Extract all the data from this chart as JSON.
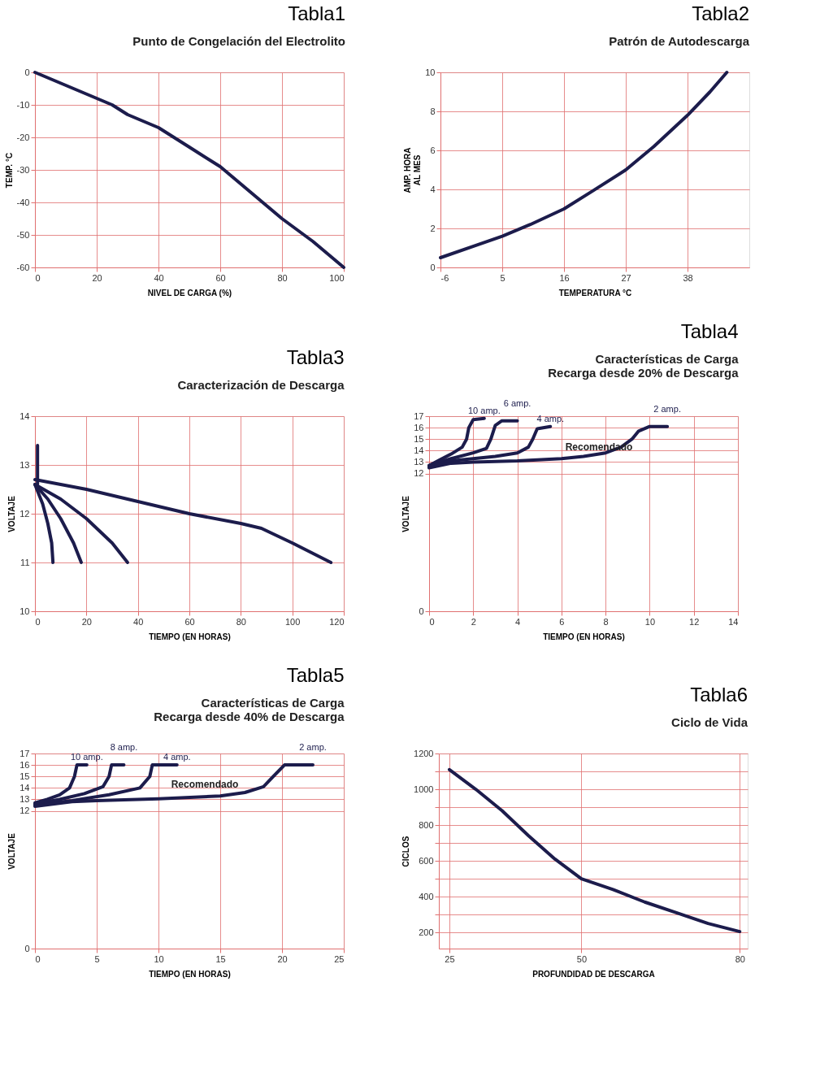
{
  "chart_data": [
    {
      "type": "line",
      "title": "Tabla1",
      "subtitle": "Punto de Congelación del Electrolito",
      "xlabel": "NIVEL DE CARGA (%)",
      "ylabel": "TEMP. °C",
      "xlim": [
        0,
        100
      ],
      "ylim": [
        -60,
        0
      ],
      "xticks": [
        0,
        20,
        40,
        60,
        80,
        100
      ],
      "yticks": [
        -60,
        -50,
        -40,
        -30,
        -20,
        -10,
        0
      ],
      "grid": true,
      "marker": "none",
      "line_style": "solid",
      "series": [
        {
          "color": "#1c1c4c",
          "x": [
            0,
            10,
            20,
            25,
            30,
            40,
            50,
            60,
            70,
            80,
            90,
            100
          ],
          "values": [
            0,
            -4,
            -8,
            -10,
            -13,
            -17,
            -23,
            -29,
            -37,
            -45,
            -52,
            -60
          ]
        }
      ]
    },
    {
      "type": "line",
      "title": "Tabla2",
      "subtitle": "Patrón de Autodescarga",
      "xlabel": "TEMPERATURA °C",
      "ylabel": "AMP. HORA\nAL MES",
      "xlim": [
        -6,
        49
      ],
      "ylim": [
        0,
        10
      ],
      "xticks": [
        -6,
        5,
        16,
        27,
        38
      ],
      "yticks": [
        0,
        2,
        4,
        6,
        8,
        10
      ],
      "grid": true,
      "marker": "none",
      "line_style": "solid",
      "series": [
        {
          "color": "#1c1c4c",
          "x": [
            -6,
            0,
            5,
            10,
            16,
            21,
            27,
            32,
            38,
            42,
            45
          ],
          "values": [
            0.5,
            1.1,
            1.6,
            2.2,
            3.0,
            3.9,
            5.0,
            6.2,
            7.8,
            9.0,
            10
          ]
        }
      ]
    },
    {
      "type": "line",
      "title": "Tabla3",
      "subtitle": "Caracterización de Descarga",
      "xlabel": "TIEMPO (EN HORAS)",
      "ylabel": "VOLTAJE",
      "xlim": [
        0,
        120
      ],
      "ylim": [
        10,
        14
      ],
      "xticks": [
        0,
        20,
        40,
        60,
        80,
        100,
        120
      ],
      "yticks": [
        10,
        11,
        12,
        13,
        14
      ],
      "grid": true,
      "marker": "none",
      "line_style": "solid",
      "series": [
        {
          "color": "#1c1c4c",
          "x": [
            1,
            1
          ],
          "values": [
            12.6,
            13.4
          ]
        },
        {
          "color": "#1c1c4c",
          "x": [
            0,
            3,
            5,
            6.5,
            7
          ],
          "values": [
            12.6,
            12.2,
            11.8,
            11.4,
            11
          ]
        },
        {
          "color": "#1c1c4c",
          "x": [
            0,
            5,
            10,
            15,
            18
          ],
          "values": [
            12.6,
            12.3,
            11.9,
            11.4,
            11
          ]
        },
        {
          "color": "#1c1c4c",
          "x": [
            0,
            10,
            20,
            30,
            36
          ],
          "values": [
            12.6,
            12.3,
            11.9,
            11.4,
            11
          ]
        },
        {
          "color": "#1c1c4c",
          "x": [
            0,
            20,
            40,
            60,
            80,
            88,
            100,
            115
          ],
          "values": [
            12.7,
            12.5,
            12.25,
            12.0,
            11.8,
            11.7,
            11.4,
            11
          ]
        }
      ]
    },
    {
      "type": "line",
      "title": "Tabla4",
      "subtitle": [
        "Características de Carga",
        "Recarga desde 20% de Descarga"
      ],
      "annotations": [
        "Recomendado"
      ],
      "xlabel": "TIEMPO (EN HORAS)",
      "ylabel": "VOLTAJE",
      "xlim": [
        0,
        14
      ],
      "ylim": [
        0,
        17
      ],
      "xticks": [
        0,
        2,
        4,
        6,
        8,
        10,
        12,
        14
      ],
      "yticks": [
        0,
        12,
        13,
        14,
        15,
        16,
        17
      ],
      "grid": true,
      "marker": "none",
      "line_style": "solid",
      "series": [
        {
          "name": "10 amp.",
          "color": "#1c1c4c",
          "x": [
            0,
            0.5,
            1,
            1.5,
            1.7,
            1.8,
            2,
            2.5
          ],
          "values": [
            12.7,
            13.2,
            13.7,
            14.3,
            15,
            16,
            16.7,
            16.8
          ]
        },
        {
          "name": "6 amp.",
          "color": "#1c1c4c",
          "x": [
            0,
            1,
            2,
            2.6,
            2.8,
            3,
            3.3,
            4
          ],
          "values": [
            12.7,
            13.3,
            13.8,
            14.2,
            15,
            16.2,
            16.6,
            16.6
          ]
        },
        {
          "name": "4 amp.",
          "color": "#1c1c4c",
          "x": [
            0,
            1,
            2,
            3,
            4,
            4.5,
            4.7,
            4.9,
            5.5
          ],
          "values": [
            12.6,
            13.1,
            13.3,
            13.5,
            13.8,
            14.3,
            15,
            15.9,
            16.1
          ]
        },
        {
          "name": "2 amp.",
          "color": "#1c1c4c",
          "x": [
            0,
            1,
            2,
            4,
            6,
            7,
            8,
            8.7,
            9.2,
            9.5,
            10,
            10.8
          ],
          "values": [
            12.5,
            12.9,
            13,
            13.1,
            13.3,
            13.5,
            13.8,
            14.3,
            15,
            15.7,
            16.1,
            16.1
          ]
        }
      ]
    },
    {
      "type": "line",
      "title": "Tabla5",
      "subtitle": [
        "Características de Carga",
        "Recarga desde 40% de Descarga"
      ],
      "annotations": [
        "Recomendado"
      ],
      "xlabel": "TIEMPO (EN HORAS)",
      "ylabel": "VOLTAJE",
      "xlim": [
        0,
        25
      ],
      "ylim": [
        0,
        17
      ],
      "xticks": [
        0,
        5,
        10,
        15,
        20,
        25
      ],
      "yticks": [
        0,
        12,
        13,
        14,
        15,
        16,
        17
      ],
      "grid": true,
      "marker": "none",
      "line_style": "solid",
      "series": [
        {
          "name": "10 amp.",
          "color": "#1c1c4c",
          "x": [
            0,
            1,
            2,
            2.8,
            3.2,
            3.4,
            4.2
          ],
          "values": [
            12.7,
            13.0,
            13.4,
            14,
            15,
            16,
            16
          ]
        },
        {
          "name": "8 amp.",
          "color": "#1c1c4c",
          "x": [
            0,
            2,
            4,
            5.5,
            6,
            6.2,
            7.2
          ],
          "values": [
            12.6,
            13.0,
            13.5,
            14.1,
            15,
            16,
            16
          ]
        },
        {
          "name": "4 amp.",
          "color": "#1c1c4c",
          "x": [
            0,
            3,
            6,
            8.5,
            9.3,
            9.5,
            11.5
          ],
          "values": [
            12.5,
            12.9,
            13.4,
            14,
            15,
            16,
            16
          ]
        },
        {
          "name": "2 amp.",
          "color": "#1c1c4c",
          "x": [
            0,
            3,
            5,
            10,
            15,
            17,
            18.5,
            19.3,
            20.2,
            22.5
          ],
          "values": [
            12.4,
            12.8,
            12.9,
            13.05,
            13.3,
            13.6,
            14.1,
            15,
            16,
            16
          ]
        }
      ]
    },
    {
      "type": "line",
      "title": "Tabla6",
      "subtitle": "Ciclo de Vida",
      "xlabel": "PROFUNDIDAD DE DESCARGA",
      "ylabel": "CICLOS",
      "xlim": [
        23,
        81.5
      ],
      "ylim": [
        110,
        1200
      ],
      "xticks": [
        25,
        50,
        80
      ],
      "yticks": [
        200,
        {
          "value": 300,
          "label": null
        },
        400,
        {
          "value": 500,
          "label": null
        },
        600,
        {
          "value": 700,
          "label": null
        },
        800,
        {
          "value": 900,
          "label": null
        },
        1000,
        {
          "value": 1100,
          "label": null
        },
        1200
      ],
      "grid": true,
      "marker": "none",
      "line_style": "solid",
      "series": [
        {
          "color": "#1c1c4c",
          "x": [
            25,
            30,
            35,
            40,
            45,
            50,
            56,
            62,
            68,
            74,
            80
          ],
          "values": [
            1110,
            1000,
            880,
            740,
            610,
            500,
            440,
            370,
            310,
            250,
            205
          ]
        }
      ]
    }
  ]
}
